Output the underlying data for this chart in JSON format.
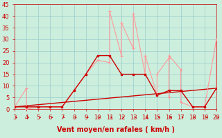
{
  "bg_color": "#cceedd",
  "grid_color": "#99cccc",
  "xlabel": "Vent moyen/en rafales ( km/h )",
  "xlabel_color": "#cc0000",
  "xlim": [
    3,
    20
  ],
  "ylim": [
    0,
    45
  ],
  "yticks": [
    0,
    5,
    10,
    15,
    20,
    25,
    30,
    35,
    40,
    45
  ],
  "xticks": [
    3,
    4,
    5,
    6,
    7,
    8,
    9,
    10,
    11,
    12,
    13,
    14,
    15,
    16,
    17,
    18,
    19,
    20
  ],
  "rafales_x": [
    3,
    4,
    4,
    5,
    6,
    7,
    8,
    9,
    10,
    11,
    11,
    12,
    12,
    13,
    13,
    14,
    14,
    15,
    15,
    16,
    16,
    16,
    17,
    17,
    18,
    19,
    20,
    20
  ],
  "rafales_y": [
    1,
    9,
    0,
    1,
    1,
    1,
    8,
    15,
    21,
    20,
    42,
    23,
    37,
    26,
    41,
    15,
    23,
    6,
    15,
    22,
    5,
    23,
    17,
    3,
    1,
    1,
    30,
    9
  ],
  "rafales_color": "#ff9999",
  "moyen_x": [
    3,
    4,
    5,
    6,
    7,
    8,
    9,
    10,
    11,
    12,
    13,
    14,
    15,
    16,
    17,
    18,
    19,
    20
  ],
  "moyen_y": [
    1,
    1,
    1,
    1,
    1,
    8,
    15,
    23,
    23,
    15,
    15,
    15,
    6,
    8,
    8,
    1,
    1,
    9
  ],
  "moyen_color": "#cc0000",
  "trend_x": [
    3,
    20
  ],
  "trend_y": [
    1,
    9
  ],
  "trend_color": "#cc0000",
  "tick_color": "#cc0000",
  "tick_fontsize": 6,
  "xlabel_fontsize": 7,
  "figsize": [
    3.2,
    2.0
  ],
  "dpi": 100
}
